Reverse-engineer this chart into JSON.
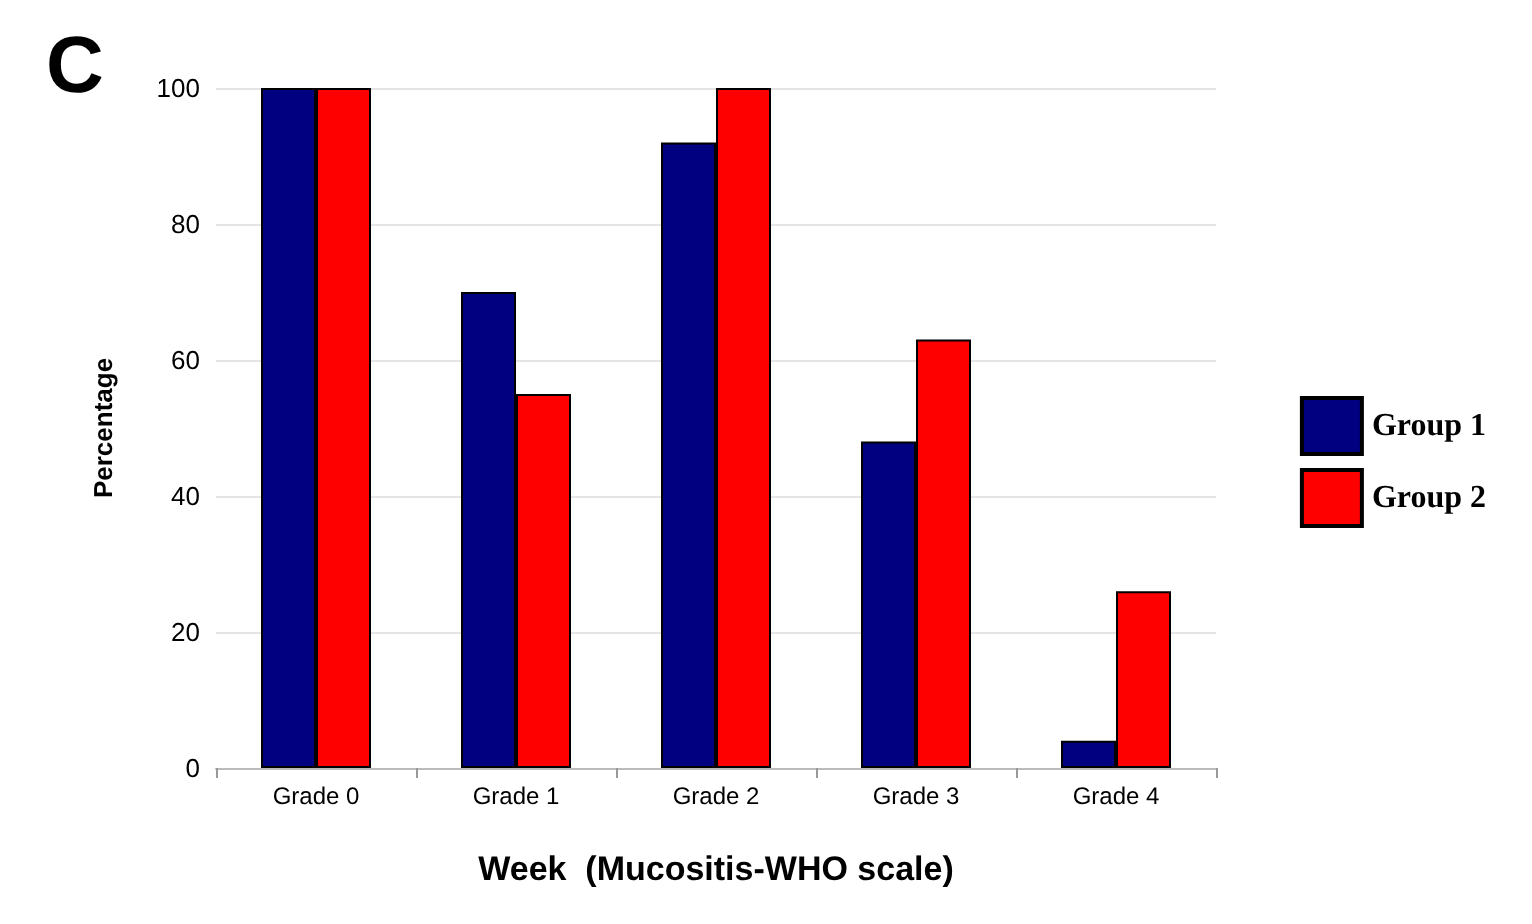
{
  "chart_data": {
    "type": "bar",
    "title": "C",
    "xlabel": "Week  (Mucositis-WHO scale)",
    "ylabel": "Percentage",
    "categories": [
      "Grade 0",
      "Grade 1",
      "Grade 2",
      "Grade 3",
      "Grade 4"
    ],
    "series": [
      {
        "name": "Group 1",
        "color": "#000080",
        "values": [
          100,
          70,
          92,
          48,
          4
        ]
      },
      {
        "name": "Group 2",
        "color": "#ff0000",
        "values": [
          100,
          55,
          100,
          63,
          26
        ]
      }
    ],
    "ylim": [
      0,
      100
    ],
    "yticks": [
      0,
      20,
      40,
      60,
      80,
      100
    ],
    "grid": "y",
    "legend": "right"
  }
}
